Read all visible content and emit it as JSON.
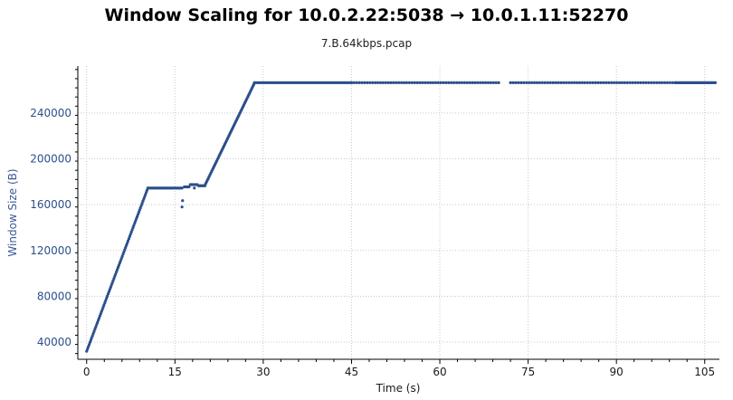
{
  "chart_data": {
    "type": "scatter",
    "title": "Window Scaling for 10.0.2.22:5038 → 10.0.1.11:52270",
    "subtitle": "7.B.64kbps.pcap",
    "xlabel": "Time (s)",
    "ylabel": "Window Size (B)",
    "xlim": [
      -1.5,
      107.5
    ],
    "ylim": [
      25000,
      281000
    ],
    "xticks": [
      0,
      15,
      30,
      45,
      60,
      75,
      90,
      105
    ],
    "yticks": [
      40000,
      80000,
      120000,
      160000,
      200000,
      240000
    ],
    "ytick_labels": [
      "40000",
      "80000",
      "120000",
      "160000",
      "200000",
      "240000"
    ],
    "grid": true,
    "series": [
      {
        "color": "#2b4f8a",
        "segments": [
          {
            "kind": "ramp",
            "x_start": 0.0,
            "x_end": 10.4,
            "y_start": 32000,
            "y_end": 174500,
            "step": 0.14
          },
          {
            "kind": "flat",
            "x_start": 10.4,
            "x_end": 16.2,
            "y": 174500,
            "step": 0.16
          },
          {
            "kind": "flat",
            "x_start": 16.6,
            "x_end": 17.4,
            "y": 175500,
            "step": 0.2
          },
          {
            "kind": "flat",
            "x_start": 17.6,
            "x_end": 18.8,
            "y": 177500,
            "step": 0.2
          },
          {
            "kind": "flat",
            "x_start": 19.0,
            "x_end": 20.1,
            "y": 176500,
            "step": 0.2
          },
          {
            "kind": "ramp",
            "x_start": 20.1,
            "x_end": 28.4,
            "y_start": 177000,
            "y_end": 265000,
            "step": 0.14
          },
          {
            "kind": "flat",
            "x_start": 28.5,
            "x_end": 45.0,
            "y": 266500,
            "step": 0.3
          },
          {
            "kind": "flat",
            "x_start": 45.0,
            "x_end": 70.0,
            "y": 266500,
            "step": 0.45
          },
          {
            "kind": "flat",
            "x_start": 72.0,
            "x_end": 100.0,
            "y": 266500,
            "step": 0.45
          },
          {
            "kind": "flat",
            "x_start": 100.0,
            "x_end": 106.8,
            "y": 266500,
            "step": 0.2
          }
        ],
        "extra_points": [
          {
            "x": 16.2,
            "y": 158000
          },
          {
            "x": 16.3,
            "y": 163500
          },
          {
            "x": 18.3,
            "y": 174500
          }
        ]
      }
    ]
  }
}
